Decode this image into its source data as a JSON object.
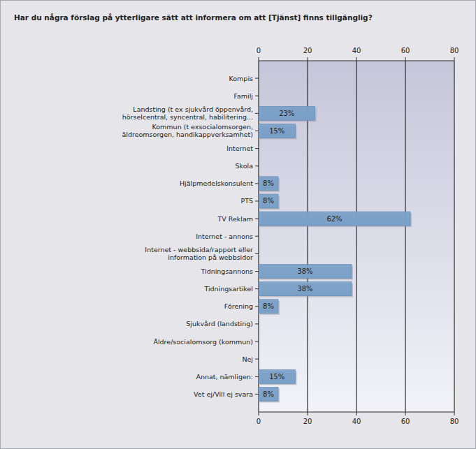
{
  "chart_data": {
    "type": "bar",
    "orientation": "horizontal",
    "title": "Har du några förslag på ytterligare sätt att informera om att [Tjänst] finns tillgänglig?",
    "categories": [
      "Kompis",
      "Familj",
      "Landsting (t ex sjukvård öppenvård, hörselcentral, syncentral, habilitering...",
      "Kommun (t exsocialomsorgen, äldreomsorgen, handikappverksamhet)",
      "Internet",
      "Skola",
      "Hjälpmedelskonsulent",
      "PTS",
      "TV Reklam",
      "Internet - annons",
      "Internet - webbsida/rapport eller information på webbsidor",
      "Tidningsannons",
      "Tidningsartikel",
      "Förening",
      "Sjukvård (landsting)",
      "Äldre/socialomsorg (kommun)",
      "Nej",
      "Annat, nämligen:",
      "Vet ej/Vill ej svara"
    ],
    "values": [
      0,
      0,
      23,
      15,
      0,
      0,
      8,
      8,
      62,
      0,
      0,
      38,
      38,
      8,
      0,
      0,
      0,
      15,
      8
    ],
    "value_labels": [
      null,
      null,
      "23%",
      "15%",
      null,
      null,
      "8%",
      "8%",
      "62%",
      null,
      null,
      "38%",
      "38%",
      "8%",
      null,
      null,
      null,
      "15%",
      "8%"
    ],
    "color": "#7aa0c8",
    "xlim": [
      0,
      80
    ],
    "xticks": [
      0,
      20,
      40,
      60,
      80
    ],
    "grid": true,
    "data_labels": true
  }
}
